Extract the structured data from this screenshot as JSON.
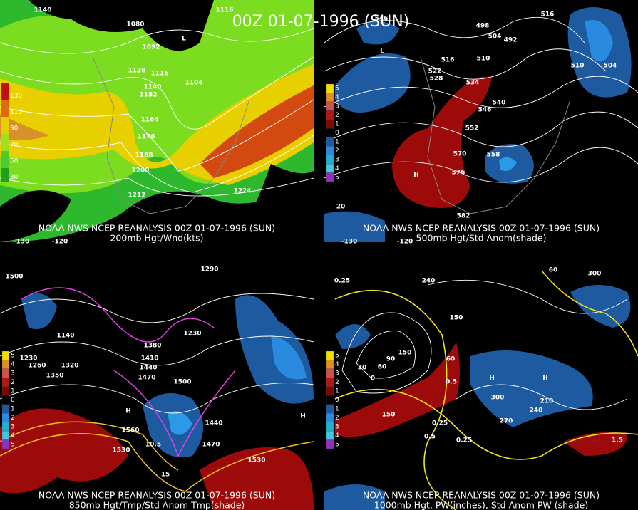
{
  "title": "00Z 01-07-1996 (SUN)",
  "panels": [
    {
      "caption": [
        "NOAA NWS NCEP REANALYSIS 00Z 01-07-1996 (SUN)",
        "200mb Hgt/Wnd(kts)"
      ],
      "colorbar": [
        "130",
        "110",
        "90",
        "70",
        "50",
        "30"
      ],
      "labels": [
        "1140",
        "1116",
        "1080",
        "1092",
        "1128",
        "1116",
        "1104",
        "1140",
        "1152",
        "1164",
        "1176",
        "1188",
        "1200",
        "1212",
        "1224",
        "-130",
        "-120",
        "L"
      ]
    },
    {
      "caption": [
        "NOAA NWS NCEP REANALYSIS 00Z 01-07-1996 (SUN)",
        "500mb Hgt/Std Anom(shade)"
      ],
      "colorbar": [
        "5",
        "4",
        "3",
        "2",
        "1",
        "0",
        "1",
        "2",
        "3",
        "4",
        "5"
      ],
      "labels": [
        "546",
        "516",
        "498",
        "504",
        "492",
        "516",
        "510",
        "510",
        "504",
        "522",
        "528",
        "534",
        "540",
        "546",
        "552",
        "558",
        "570",
        "576",
        "582",
        "20",
        "-120",
        "-130",
        "H",
        "L"
      ]
    },
    {
      "caption": [
        "NOAA NWS NCEP REANALYSIS 00Z 01-07-1996 (SUN)",
        "850mb Hgt/Tmp/Std Anom Tmp(shade)"
      ],
      "colorbar": [
        "5",
        "4",
        "3",
        "2",
        "1",
        "0",
        "1",
        "2",
        "3",
        "4",
        "5"
      ],
      "labels": [
        "1500",
        "1290",
        "1230",
        "1140",
        "1230",
        "1260",
        "1320",
        "1350",
        "1380",
        "1410",
        "1440",
        "1470",
        "1500",
        "1560",
        "1530",
        "1470",
        "1530",
        "1440",
        "10.5",
        "15",
        "H",
        "H"
      ]
    },
    {
      "caption": [
        "NOAA NWS NCEP REANALYSIS 00Z 01-07-1996 (SUN)",
        "1000mb Hgt, PW(inches), Std Anom PW (shade)"
      ],
      "colorbar": [
        "5",
        "4",
        "3",
        "2",
        "1",
        "0",
        "1",
        "2",
        "3",
        "4",
        "5"
      ],
      "labels": [
        "0.25",
        "240",
        "60",
        "300",
        "150",
        "30",
        "0",
        "60",
        "90",
        "150",
        "60",
        "0.5",
        "300",
        "270",
        "240",
        "210",
        "0.25",
        "0.25",
        "0.5",
        "150",
        "1.5",
        "H",
        "H"
      ]
    }
  ]
}
